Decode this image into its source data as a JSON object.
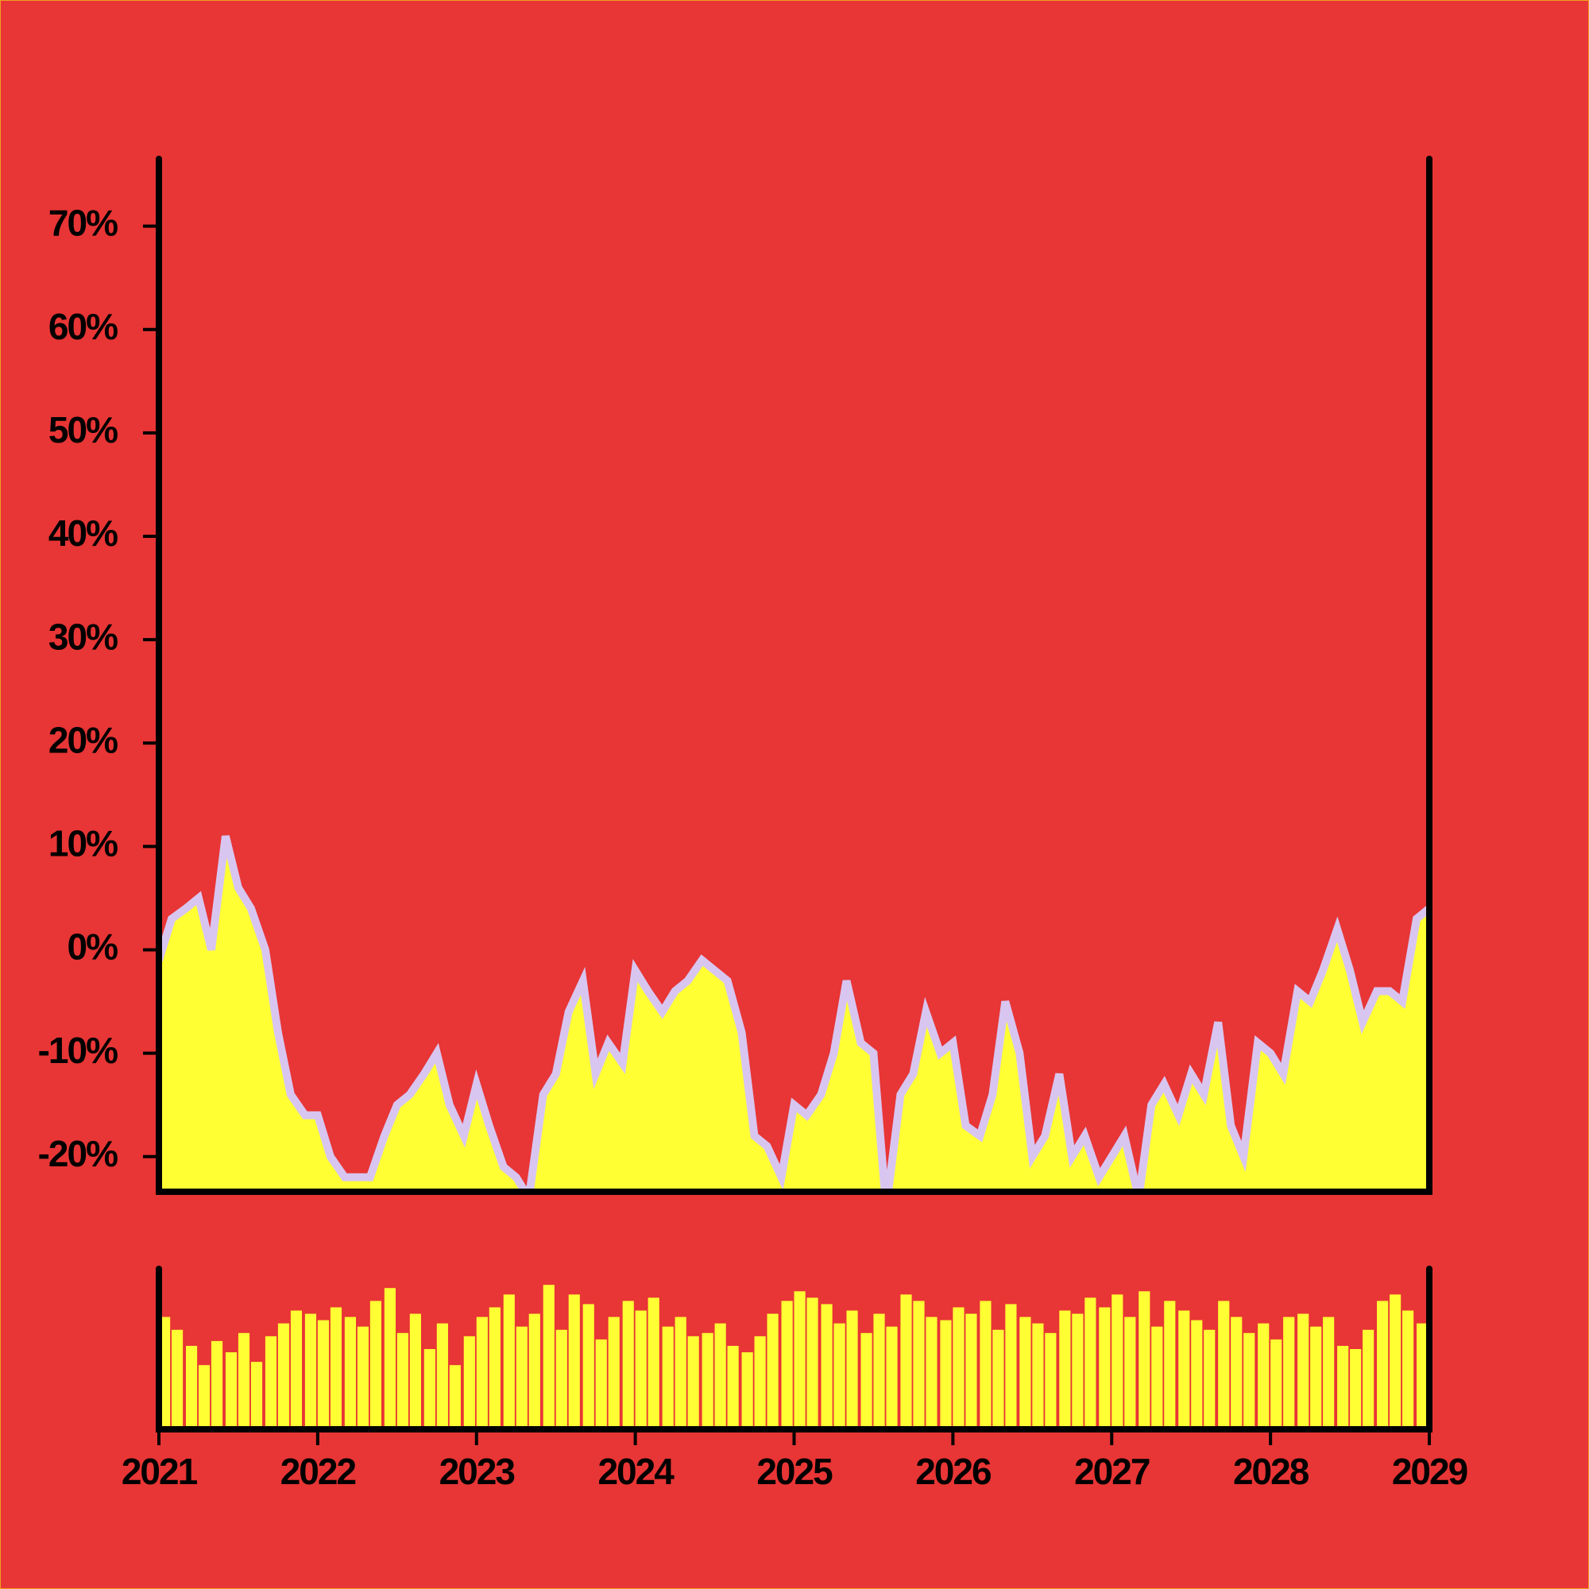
{
  "chart_data": [
    {
      "type": "area",
      "x": [
        2021.0,
        2021.08,
        2021.17,
        2021.25,
        2021.33,
        2021.42,
        2021.5,
        2021.58,
        2021.67,
        2021.75,
        2021.83,
        2021.92,
        2022.0,
        2022.08,
        2022.17,
        2022.25,
        2022.33,
        2022.42,
        2022.5,
        2022.58,
        2022.67,
        2022.75,
        2022.83,
        2022.92,
        2023.0,
        2023.08,
        2023.17,
        2023.25,
        2023.33,
        2023.42,
        2023.5,
        2023.58,
        2023.67,
        2023.75,
        2023.83,
        2023.92,
        2024.0,
        2024.08,
        2024.17,
        2024.25,
        2024.33,
        2024.42,
        2024.5,
        2024.58,
        2024.67,
        2024.75,
        2024.83,
        2024.92,
        2025.0,
        2025.08,
        2025.17,
        2025.25,
        2025.33,
        2025.42,
        2025.5,
        2025.58,
        2025.67,
        2025.75,
        2025.83,
        2025.92,
        2026.0,
        2026.08,
        2026.17,
        2026.25,
        2026.33,
        2026.42,
        2026.5,
        2026.58,
        2026.67,
        2026.75,
        2026.83,
        2026.92,
        2027.0,
        2027.08,
        2027.17,
        2027.25,
        2027.33,
        2027.42,
        2027.5,
        2027.58,
        2027.67,
        2027.75,
        2027.83,
        2027.92,
        2028.0,
        2028.08,
        2028.17,
        2028.25,
        2028.33,
        2028.42,
        2028.5,
        2028.58,
        2028.67,
        2028.75,
        2028.83,
        2028.92,
        2029.0
      ],
      "series": [
        {
          "color": "#d8c6f0",
          "fill": "#ffff33",
          "values": [
            -1,
            3,
            4,
            5,
            0,
            11,
            6,
            4,
            0,
            -8,
            -14,
            -16,
            -16,
            -20,
            -22,
            -22,
            -22,
            -18,
            -15,
            -14,
            -12,
            -10,
            -15,
            -18,
            -13,
            -17,
            -21,
            -22,
            -24,
            -14,
            -12,
            -6,
            -3,
            -12,
            -9,
            -11,
            -2,
            -4,
            -6,
            -4,
            -3,
            -1,
            -2,
            -3,
            -8,
            -18,
            -19,
            -22,
            -15,
            -16,
            -14,
            -10,
            -3,
            -9,
            -10,
            -25,
            -14,
            -12,
            -6,
            -10,
            -9,
            -17,
            -18,
            -14,
            -5,
            -10,
            -20,
            -18,
            -12,
            -20,
            -18,
            -22,
            -20,
            -18,
            -24,
            -15,
            -13,
            -16,
            -12,
            -14,
            -7,
            -17,
            -20,
            -9,
            -10,
            -12,
            -4,
            -5,
            -2,
            2,
            -2,
            -7,
            -4,
            -4,
            -5,
            3,
            4
          ]
        }
      ],
      "xlim": [
        2021,
        2029
      ],
      "ylim": [
        -23.4,
        76.5
      ],
      "yticks": [
        {
          "value": -20,
          "label": "-20%"
        },
        {
          "value": -10,
          "label": "-10%"
        },
        {
          "value": 0,
          "label": "0%"
        },
        {
          "value": 10,
          "label": "10%"
        },
        {
          "value": 20,
          "label": "20%"
        },
        {
          "value": 30,
          "label": "30%"
        },
        {
          "value": 40,
          "label": "40%"
        },
        {
          "value": 50,
          "label": "50%"
        },
        {
          "value": 60,
          "label": "60%"
        },
        {
          "value": 70,
          "label": "70%"
        }
      ]
    },
    {
      "type": "bar",
      "x": [
        2021.0,
        2021.08,
        2021.17,
        2021.25,
        2021.33,
        2021.42,
        2021.5,
        2021.58,
        2021.67,
        2021.75,
        2021.83,
        2021.92,
        2022.0,
        2022.08,
        2022.17,
        2022.25,
        2022.33,
        2022.42,
        2022.5,
        2022.58,
        2022.67,
        2022.75,
        2022.83,
        2022.92,
        2023.0,
        2023.08,
        2023.17,
        2023.25,
        2023.33,
        2023.42,
        2023.5,
        2023.58,
        2023.67,
        2023.75,
        2023.83,
        2023.92,
        2024.0,
        2024.08,
        2024.17,
        2024.25,
        2024.33,
        2024.42,
        2024.5,
        2024.58,
        2024.67,
        2024.75,
        2024.83,
        2024.92,
        2025.0,
        2025.08,
        2025.17,
        2025.25,
        2025.33,
        2025.42,
        2025.5,
        2025.58,
        2025.67,
        2025.75,
        2025.83,
        2025.92,
        2026.0,
        2026.08,
        2026.17,
        2026.25,
        2026.33,
        2026.42,
        2026.5,
        2026.58,
        2026.67,
        2026.75,
        2026.83,
        2026.92,
        2027.0,
        2027.08,
        2027.17,
        2027.25,
        2027.33,
        2027.42,
        2027.5,
        2027.58,
        2027.67,
        2027.75,
        2027.83,
        2027.92,
        2028.0,
        2028.08,
        2028.17,
        2028.25,
        2028.33,
        2028.42,
        2028.5,
        2028.58,
        2028.67,
        2028.75,
        2028.83,
        2028.92
      ],
      "color": "#ffff33",
      "values": [
        70,
        62,
        52,
        40,
        55,
        48,
        60,
        42,
        58,
        66,
        74,
        72,
        68,
        76,
        70,
        64,
        80,
        88,
        60,
        72,
        50,
        66,
        40,
        58,
        70,
        76,
        84,
        64,
        72,
        90,
        62,
        84,
        78,
        56,
        70,
        80,
        74,
        82,
        64,
        70,
        58,
        60,
        66,
        52,
        48,
        58,
        72,
        80,
        86,
        82,
        78,
        66,
        74,
        60,
        72,
        64,
        84,
        80,
        70,
        68,
        76,
        72,
        80,
        62,
        78,
        70,
        66,
        60,
        74,
        72,
        82,
        76,
        84,
        70,
        86,
        64,
        80,
        74,
        68,
        62,
        80,
        70,
        60,
        66,
        56,
        70,
        72,
        64,
        70,
        52,
        50,
        62,
        80,
        84,
        74,
        66
      ],
      "xlim": [
        2021,
        2029
      ],
      "ylim": [
        0,
        100
      ],
      "xticks": [
        2021,
        2022,
        2023,
        2024,
        2025,
        2026,
        2027,
        2028,
        2029
      ]
    }
  ]
}
